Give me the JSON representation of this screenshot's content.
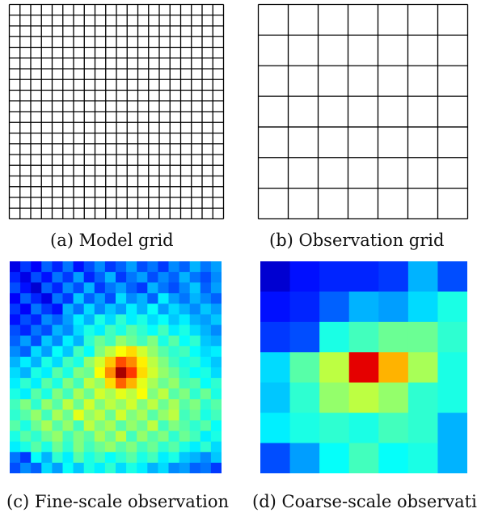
{
  "captions": {
    "a": "(a) Model grid",
    "b": "(b) Observation grid",
    "c": "(c) Fine-scale observation",
    "d": "(d) Coarse-scale observatio"
  },
  "grids": {
    "model": {
      "rows": 20,
      "cols": 20,
      "line_color": "#000000"
    },
    "observation": {
      "rows": 7,
      "cols": 7,
      "line_color": "#000000"
    }
  },
  "fine_scale": {
    "rows": 20,
    "cols": 20,
    "colormap": "jet",
    "range": [
      0,
      1
    ],
    "values": [
      [
        0.1,
        0.18,
        0.12,
        0.22,
        0.16,
        0.24,
        0.14,
        0.2,
        0.26,
        0.18,
        0.22,
        0.28,
        0.2,
        0.24,
        0.18,
        0.26,
        0.22,
        0.3,
        0.24,
        0.28
      ],
      [
        0.16,
        0.1,
        0.2,
        0.14,
        0.24,
        0.18,
        0.28,
        0.16,
        0.22,
        0.3,
        0.18,
        0.24,
        0.28,
        0.2,
        0.26,
        0.22,
        0.3,
        0.24,
        0.2,
        0.26
      ],
      [
        0.2,
        0.14,
        0.08,
        0.22,
        0.16,
        0.26,
        0.2,
        0.3,
        0.18,
        0.24,
        0.28,
        0.22,
        0.18,
        0.3,
        0.24,
        0.2,
        0.26,
        0.32,
        0.22,
        0.28
      ],
      [
        0.12,
        0.22,
        0.16,
        0.1,
        0.24,
        0.18,
        0.32,
        0.22,
        0.28,
        0.2,
        0.34,
        0.26,
        0.3,
        0.22,
        0.36,
        0.28,
        0.24,
        0.3,
        0.26,
        0.22
      ],
      [
        0.18,
        0.12,
        0.24,
        0.18,
        0.14,
        0.3,
        0.24,
        0.34,
        0.26,
        0.32,
        0.28,
        0.36,
        0.3,
        0.38,
        0.28,
        0.34,
        0.3,
        0.26,
        0.32,
        0.28
      ],
      [
        0.14,
        0.2,
        0.16,
        0.26,
        0.22,
        0.28,
        0.36,
        0.3,
        0.4,
        0.34,
        0.42,
        0.36,
        0.4,
        0.34,
        0.38,
        0.32,
        0.36,
        0.3,
        0.28,
        0.32
      ],
      [
        0.2,
        0.16,
        0.24,
        0.2,
        0.3,
        0.26,
        0.34,
        0.4,
        0.36,
        0.44,
        0.4,
        0.46,
        0.42,
        0.38,
        0.44,
        0.36,
        0.4,
        0.34,
        0.3,
        0.26
      ],
      [
        0.22,
        0.28,
        0.2,
        0.32,
        0.26,
        0.36,
        0.3,
        0.42,
        0.48,
        0.44,
        0.52,
        0.48,
        0.44,
        0.5,
        0.4,
        0.46,
        0.38,
        0.42,
        0.32,
        0.3
      ],
      [
        0.26,
        0.22,
        0.34,
        0.28,
        0.38,
        0.32,
        0.44,
        0.38,
        0.5,
        0.56,
        0.62,
        0.66,
        0.58,
        0.52,
        0.46,
        0.42,
        0.44,
        0.38,
        0.34,
        0.36
      ],
      [
        0.3,
        0.36,
        0.3,
        0.4,
        0.34,
        0.44,
        0.4,
        0.52,
        0.58,
        0.68,
        0.8,
        0.74,
        0.64,
        0.56,
        0.5,
        0.44,
        0.4,
        0.42,
        0.36,
        0.32
      ],
      [
        0.34,
        0.3,
        0.4,
        0.36,
        0.46,
        0.4,
        0.5,
        0.48,
        0.62,
        0.74,
        0.96,
        0.82,
        0.66,
        0.58,
        0.52,
        0.48,
        0.42,
        0.38,
        0.4,
        0.34
      ],
      [
        0.36,
        0.42,
        0.36,
        0.46,
        0.4,
        0.5,
        0.44,
        0.56,
        0.52,
        0.66,
        0.78,
        0.7,
        0.6,
        0.54,
        0.48,
        0.52,
        0.44,
        0.46,
        0.38,
        0.42
      ],
      [
        0.4,
        0.36,
        0.46,
        0.4,
        0.5,
        0.44,
        0.54,
        0.48,
        0.58,
        0.54,
        0.6,
        0.56,
        0.62,
        0.5,
        0.56,
        0.46,
        0.5,
        0.42,
        0.48,
        0.4
      ],
      [
        0.44,
        0.5,
        0.42,
        0.52,
        0.46,
        0.56,
        0.48,
        0.58,
        0.5,
        0.56,
        0.52,
        0.58,
        0.5,
        0.56,
        0.48,
        0.54,
        0.46,
        0.5,
        0.42,
        0.46
      ],
      [
        0.42,
        0.46,
        0.52,
        0.44,
        0.54,
        0.48,
        0.6,
        0.52,
        0.56,
        0.48,
        0.58,
        0.5,
        0.54,
        0.46,
        0.52,
        0.56,
        0.44,
        0.48,
        0.4,
        0.44
      ],
      [
        0.46,
        0.4,
        0.48,
        0.54,
        0.46,
        0.52,
        0.44,
        0.56,
        0.5,
        0.54,
        0.46,
        0.52,
        0.48,
        0.56,
        0.44,
        0.5,
        0.46,
        0.42,
        0.46,
        0.38
      ],
      [
        0.4,
        0.46,
        0.42,
        0.48,
        0.52,
        0.44,
        0.5,
        0.46,
        0.54,
        0.48,
        0.56,
        0.44,
        0.52,
        0.46,
        0.5,
        0.42,
        0.48,
        0.44,
        0.36,
        0.4
      ],
      [
        0.36,
        0.4,
        0.46,
        0.4,
        0.48,
        0.42,
        0.5,
        0.44,
        0.48,
        0.52,
        0.46,
        0.5,
        0.44,
        0.48,
        0.42,
        0.46,
        0.4,
        0.36,
        0.42,
        0.34
      ],
      [
        0.24,
        0.18,
        0.38,
        0.3,
        0.42,
        0.36,
        0.46,
        0.4,
        0.44,
        0.38,
        0.42,
        0.46,
        0.4,
        0.44,
        0.36,
        0.4,
        0.32,
        0.3,
        0.26,
        0.32
      ],
      [
        0.2,
        0.26,
        0.22,
        0.34,
        0.28,
        0.38,
        0.32,
        0.4,
        0.36,
        0.42,
        0.34,
        0.4,
        0.36,
        0.3,
        0.34,
        0.26,
        0.28,
        0.22,
        0.24,
        0.18
      ]
    ]
  },
  "coarse_scale": {
    "rows": 7,
    "cols": 7,
    "colormap": "jet",
    "range": [
      0,
      1
    ],
    "values": [
      [
        0.08,
        0.14,
        0.16,
        0.16,
        0.18,
        0.3,
        0.2
      ],
      [
        0.14,
        0.16,
        0.22,
        0.3,
        0.28,
        0.34,
        0.4
      ],
      [
        0.18,
        0.2,
        0.4,
        0.44,
        0.48,
        0.48,
        0.42
      ],
      [
        0.34,
        0.46,
        0.56,
        0.9,
        0.7,
        0.54,
        0.4
      ],
      [
        0.32,
        0.42,
        0.52,
        0.56,
        0.52,
        0.42,
        0.4
      ],
      [
        0.36,
        0.4,
        0.42,
        0.4,
        0.44,
        0.42,
        0.3
      ],
      [
        0.2,
        0.28,
        0.38,
        0.44,
        0.38,
        0.4,
        0.3
      ]
    ]
  }
}
